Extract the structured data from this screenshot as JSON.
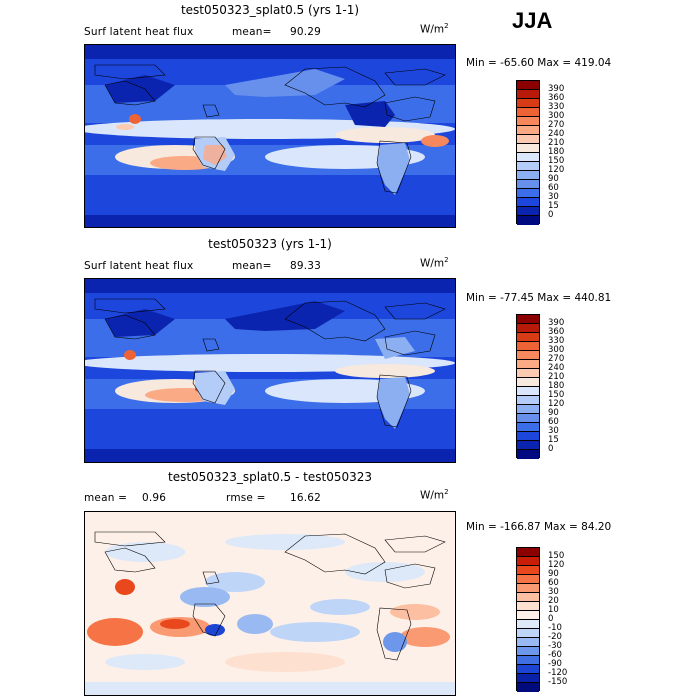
{
  "season": "JJA",
  "units_main": "W/m",
  "units_exp": "2",
  "panels": [
    {
      "title": "test050323_splat0.5 (yrs 1-1)",
      "var_label": "Surf latent heat flux",
      "stat_label": "mean=",
      "stat_value": "90.29",
      "minmax": "Min = -65.60 Max = 419.04",
      "ticks": [
        "390",
        "360",
        "330",
        "300",
        "270",
        "240",
        "210",
        "180",
        "150",
        "120",
        "90",
        "60",
        "30",
        "15",
        "0"
      ]
    },
    {
      "title": "test050323 (yrs 1-1)",
      "var_label": "Surf latent heat flux",
      "stat_label": "mean=",
      "stat_value": "89.33",
      "minmax": "Min = -77.45 Max = 440.81",
      "ticks": [
        "390",
        "360",
        "330",
        "300",
        "270",
        "240",
        "210",
        "180",
        "150",
        "120",
        "90",
        "60",
        "30",
        "15",
        "0"
      ]
    },
    {
      "title": "test050323_splat0.5 - test050323",
      "mean_label": "mean =",
      "mean_value": "0.96",
      "rmse_label": "rmse =",
      "rmse_value": "16.62",
      "minmax": "Min = -166.87 Max = 84.20",
      "ticks": [
        "150",
        "120",
        "90",
        "60",
        "30",
        "20",
        "10",
        "0",
        "-10",
        "-20",
        "-30",
        "-60",
        "-90",
        "-120",
        "-150"
      ]
    }
  ],
  "colors": {
    "abs_scale": [
      "#8b0000",
      "#b81a0a",
      "#d83c16",
      "#ee6336",
      "#f7875d",
      "#fbaa86",
      "#fccab0",
      "#f7e9dd",
      "#d9e6fb",
      "#b3ccf8",
      "#8caff2",
      "#6690ec",
      "#3b6ee8",
      "#1d46dc",
      "#0b24b0",
      "#000a80"
    ],
    "diff_scale": [
      "#8b0000",
      "#c81e08",
      "#e9481c",
      "#f57344",
      "#fa9a72",
      "#fcbfa2",
      "#fde0cf",
      "#fdf0e8",
      "#dde9f8",
      "#bfd5f7",
      "#98b9f2",
      "#6d97ea",
      "#3f6fe2",
      "#1d45d3",
      "#0922a7",
      "#000a7a"
    ]
  }
}
